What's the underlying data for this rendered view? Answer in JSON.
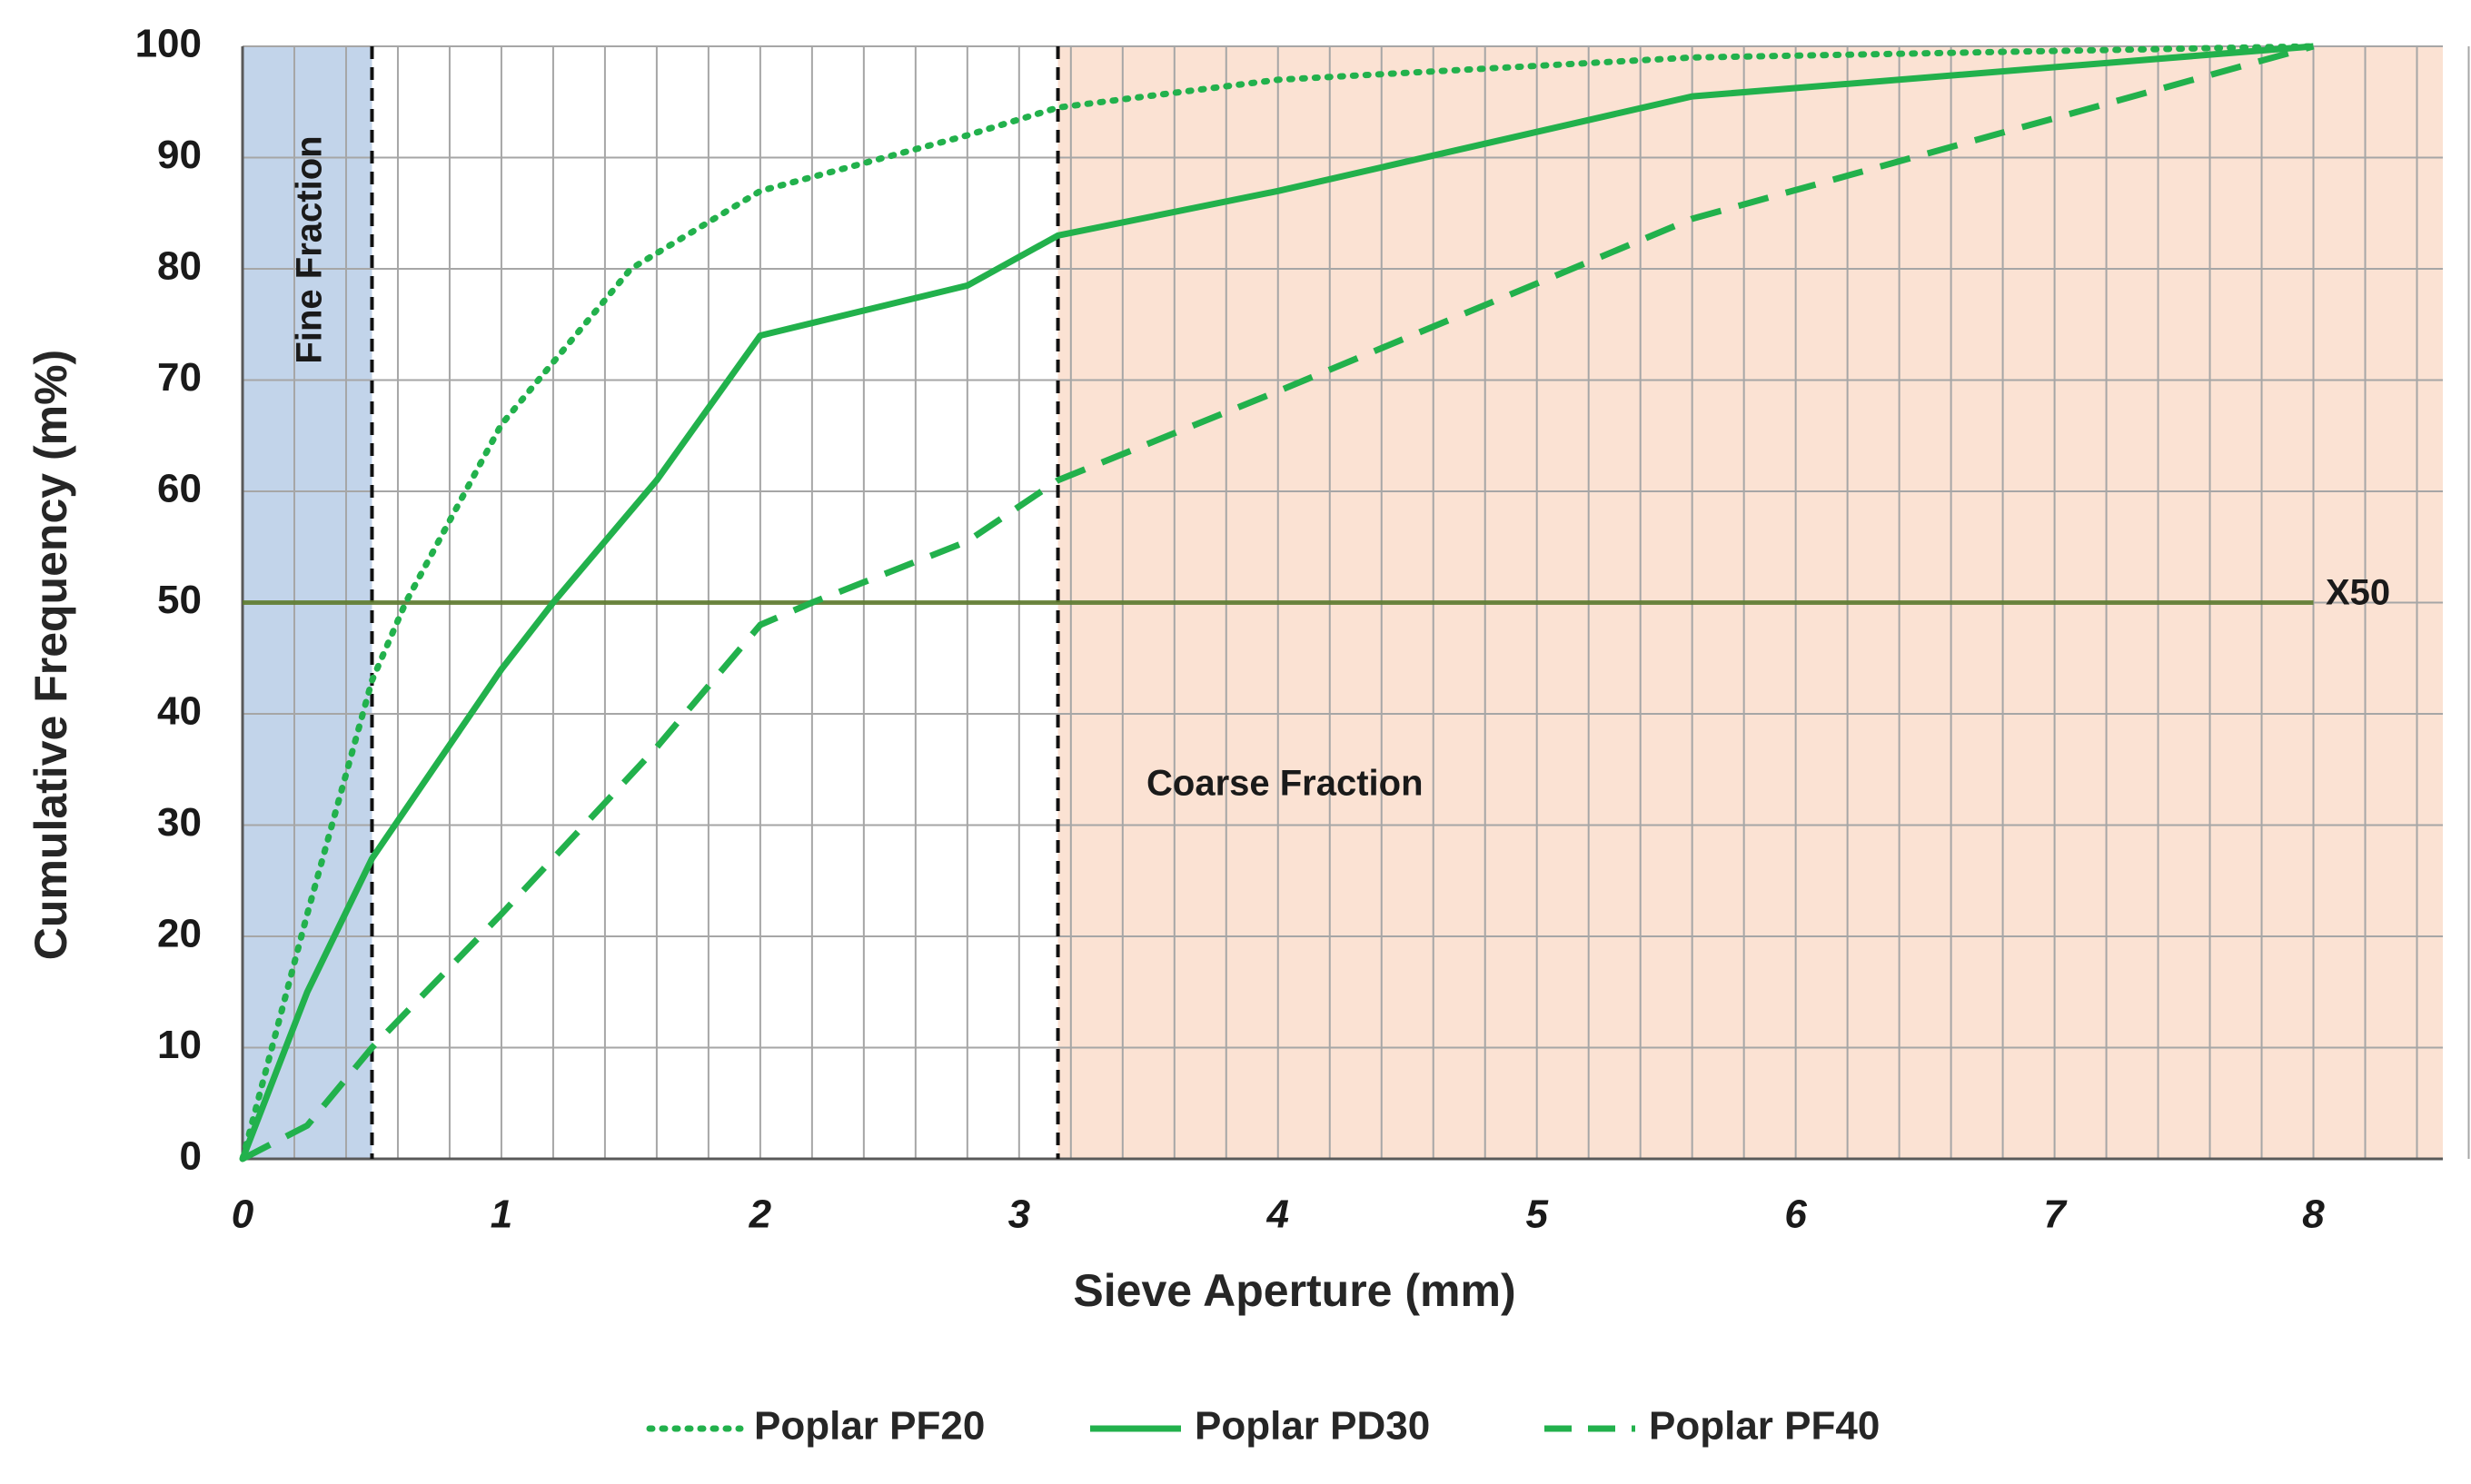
{
  "chart_data": {
    "type": "line",
    "title": "",
    "xlabel": "Sieve Aperture (mm)",
    "ylabel": "Cumulative Frequency (m%)",
    "xlim": [
      0,
      8.5
    ],
    "ylim": [
      0,
      100
    ],
    "x_ticks": [
      "0",
      "1",
      "2",
      "3",
      "4",
      "5",
      "6",
      "7",
      "8"
    ],
    "y_ticks": [
      "0",
      "10",
      "20",
      "30",
      "40",
      "50",
      "60",
      "70",
      "80",
      "90",
      "100"
    ],
    "grid": true,
    "legend_position": "bottom-center",
    "colors": {
      "series": "#22b14c",
      "fine_region": "#c2d4ea",
      "coarse_region": "#fbe2d3",
      "x50_line": "#5c7a2a",
      "divider": "#111111",
      "grid": "#a6a6a6"
    },
    "regions": [
      {
        "name": "Fine Fraction",
        "from": 0,
        "to": 0.5
      },
      {
        "name": "Coarse Fraction",
        "from": 3.15,
        "to": 8.5
      }
    ],
    "dividers": [
      0.5,
      3.15
    ],
    "reference_line": {
      "label": "X50",
      "y": 50,
      "x_from": 0,
      "x_to": 8
    },
    "series": [
      {
        "name": "Poplar PF20",
        "style": "dotted",
        "points": [
          [
            0,
            0
          ],
          [
            0.25,
            22
          ],
          [
            0.5,
            43
          ],
          [
            0.63,
            50
          ],
          [
            1,
            66
          ],
          [
            1.5,
            80
          ],
          [
            2,
            87
          ],
          [
            2.8,
            92
          ],
          [
            3.15,
            94.5
          ],
          [
            4,
            97
          ],
          [
            5.6,
            99
          ],
          [
            8,
            100
          ]
        ]
      },
      {
        "name": "Poplar PD30",
        "style": "solid",
        "points": [
          [
            0,
            0
          ],
          [
            0.25,
            15
          ],
          [
            0.5,
            27
          ],
          [
            1,
            44
          ],
          [
            1.2,
            50
          ],
          [
            1.6,
            61
          ],
          [
            2,
            74
          ],
          [
            2.8,
            78.5
          ],
          [
            3.15,
            83
          ],
          [
            4,
            87
          ],
          [
            5.6,
            95.5
          ],
          [
            8,
            100
          ]
        ]
      },
      {
        "name": "Poplar PF40",
        "style": "dashed",
        "points": [
          [
            0,
            0
          ],
          [
            0.25,
            3
          ],
          [
            0.5,
            10
          ],
          [
            1,
            22
          ],
          [
            1.6,
            37
          ],
          [
            2,
            48
          ],
          [
            2.2,
            50
          ],
          [
            2.8,
            55.5
          ],
          [
            3.15,
            61
          ],
          [
            4,
            69
          ],
          [
            5.6,
            84.5
          ],
          [
            8,
            100
          ]
        ]
      }
    ]
  }
}
